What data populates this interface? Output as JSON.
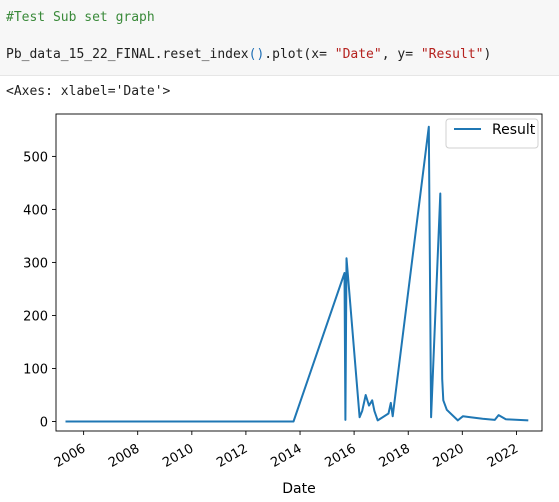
{
  "cell": {
    "comment": "#Test Sub set graph",
    "code_obj": "Pb_data_15_22_FINAL.reset_index",
    "code_paren": "()",
    "code_mid1": ".plot(x= ",
    "code_str1": "\"Date\"",
    "code_mid2": ", y= ",
    "code_str2": "\"Result\"",
    "code_end": ")"
  },
  "output": {
    "repr": "<Axes: xlabel='Date'>"
  },
  "chart_data": {
    "type": "line",
    "xlabel": "Date",
    "ylabel": "",
    "ylim": [
      -18,
      580
    ],
    "xlim": [
      "2004-12-24",
      "2022-12-12"
    ],
    "x_ticks": [
      "2006",
      "2008",
      "2010",
      "2012",
      "2014",
      "2016",
      "2018",
      "2020",
      "2022"
    ],
    "y_ticks": [
      0,
      100,
      200,
      300,
      400,
      500
    ],
    "legend": "top-right",
    "grid": false,
    "series": [
      {
        "name": "Result",
        "color": "#1f77b4",
        "x": [
          "2005-05-01",
          "2013-10-05",
          "2015-08-25",
          "2015-09-05",
          "2015-09-20",
          "2016-03-15",
          "2016-04-20",
          "2016-06-05",
          "2016-07-20",
          "2016-09-01",
          "2016-10-01",
          "2016-11-15",
          "2017-04-10",
          "2017-05-10",
          "2017-06-05",
          "2018-10-05",
          "2018-11-05",
          "2019-03-10",
          "2019-04-05",
          "2019-04-20",
          "2019-06-05",
          "2019-11-01",
          "2020-01-10",
          "2020-04-20",
          "2020-10-01",
          "2021-03-15",
          "2021-05-05",
          "2021-08-10",
          "2022-06-10"
        ],
        "values": [
          0,
          0,
          280,
          3,
          308,
          8,
          20,
          50,
          30,
          40,
          20,
          2,
          15,
          35,
          10,
          556,
          8,
          430,
          80,
          40,
          22,
          2,
          10,
          8,
          5,
          3,
          12,
          4,
          2
        ]
      }
    ]
  }
}
